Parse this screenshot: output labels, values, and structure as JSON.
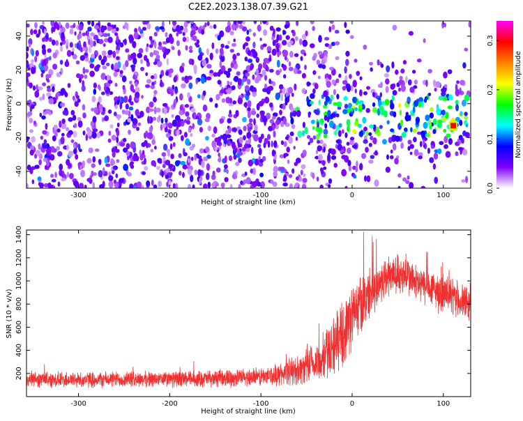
{
  "title": "C2E2.2023.138.07.39.G21",
  "chart_data": [
    {
      "type": "heatmap",
      "xlabel": "Height of straight line (km)",
      "ylabel": "Frequency (Hz)",
      "xlim": [
        -357,
        130
      ],
      "ylim": [
        -50,
        49
      ],
      "xticks": [
        -300,
        -200,
        -100,
        0,
        100
      ],
      "yticks": [
        -40,
        -20,
        0,
        20,
        40
      ],
      "colorbar": {
        "label": "Normalized spectral amplitude",
        "range": [
          0.0,
          0.34
        ],
        "ticks": [
          0.0,
          0.1,
          0.2,
          0.3
        ],
        "colormap": [
          "#ffffff",
          "#8000ff",
          "#0000ff",
          "#00ffff",
          "#00ff00",
          "#ffff00",
          "#ff8000",
          "#ff0000",
          "#ff00ff"
        ]
      },
      "features": {
        "dense_noise_region_x": [
          -357,
          -60
        ],
        "signal_band_freq_hz": [
          -20,
          5
        ],
        "peak": {
          "x": 111,
          "y": -13,
          "amplitude": 0.3
        },
        "gap_column_x": 111
      },
      "grid": false
    },
    {
      "type": "line",
      "xlabel": "Height of straight line (km)",
      "ylabel": "SNR (10 * v/v)",
      "xlim": [
        -357,
        130
      ],
      "ylim": [
        0,
        1440
      ],
      "xticks": [
        -300,
        -200,
        -100,
        0,
        100
      ],
      "yticks": [
        200,
        400,
        600,
        800,
        1000,
        1200,
        1400
      ],
      "series": [
        {
          "color": "#f03030",
          "x": [
            -357,
            -300,
            -250,
            -200,
            -150,
            -120,
            -100,
            -80,
            -60,
            -40,
            -30,
            -20,
            -10,
            0,
            10,
            20,
            30,
            40,
            50,
            60,
            70,
            80,
            90,
            100,
            110,
            120,
            130
          ],
          "mean": [
            150,
            145,
            150,
            150,
            155,
            165,
            170,
            190,
            230,
            280,
            350,
            450,
            550,
            700,
            800,
            900,
            980,
            1050,
            1060,
            1050,
            980,
            950,
            920,
            880,
            860,
            820,
            800
          ],
          "spread": [
            80,
            80,
            80,
            80,
            85,
            90,
            95,
            110,
            150,
            200,
            250,
            300,
            320,
            330,
            300,
            250,
            230,
            220,
            210,
            200,
            190,
            190,
            190,
            190,
            190,
            180,
            170
          ]
        }
      ],
      "grid": false
    }
  ]
}
